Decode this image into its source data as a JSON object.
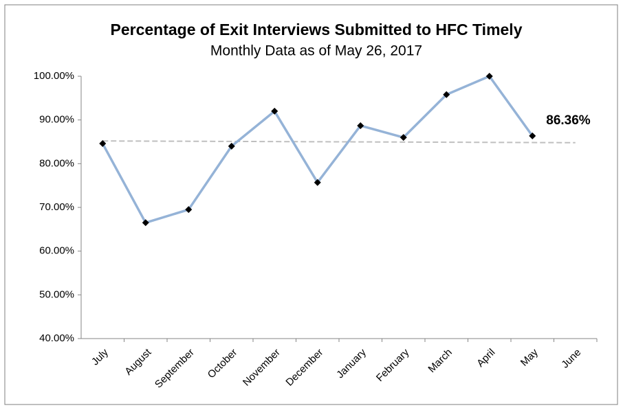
{
  "chart_data": {
    "type": "line",
    "title": "Percentage of Exit Interviews Submitted to HFC Timely",
    "subtitle": "Monthly Data as of May 26, 2017",
    "categories": [
      "July",
      "August",
      "September",
      "October",
      "November",
      "December",
      "January",
      "February",
      "March",
      "April",
      "May",
      "June"
    ],
    "series": [
      {
        "color": "#95b3d7",
        "values": [
          84.6,
          66.5,
          69.5,
          84,
          92,
          75.7,
          88.7,
          86,
          95.8,
          100,
          86.36,
          null
        ],
        "value_labels": [
          null,
          null,
          null,
          null,
          null,
          null,
          null,
          null,
          null,
          null,
          "86.36%",
          null
        ]
      }
    ],
    "trendline": {
      "color": "#bfbfbf",
      "values": [
        85.2,
        84.8
      ]
    },
    "ylim": [
      40,
      100
    ],
    "yticks": [
      {
        "value": 40,
        "label": "40.00%"
      },
      {
        "value": 50,
        "label": "50.00%"
      },
      {
        "value": 60,
        "label": "60.00%"
      },
      {
        "value": 70,
        "label": "70.00%"
      },
      {
        "value": 80,
        "label": "80.00%"
      },
      {
        "value": 90,
        "label": "90.00%"
      },
      {
        "value": 100,
        "label": "100.00%"
      }
    ],
    "grid": false
  }
}
